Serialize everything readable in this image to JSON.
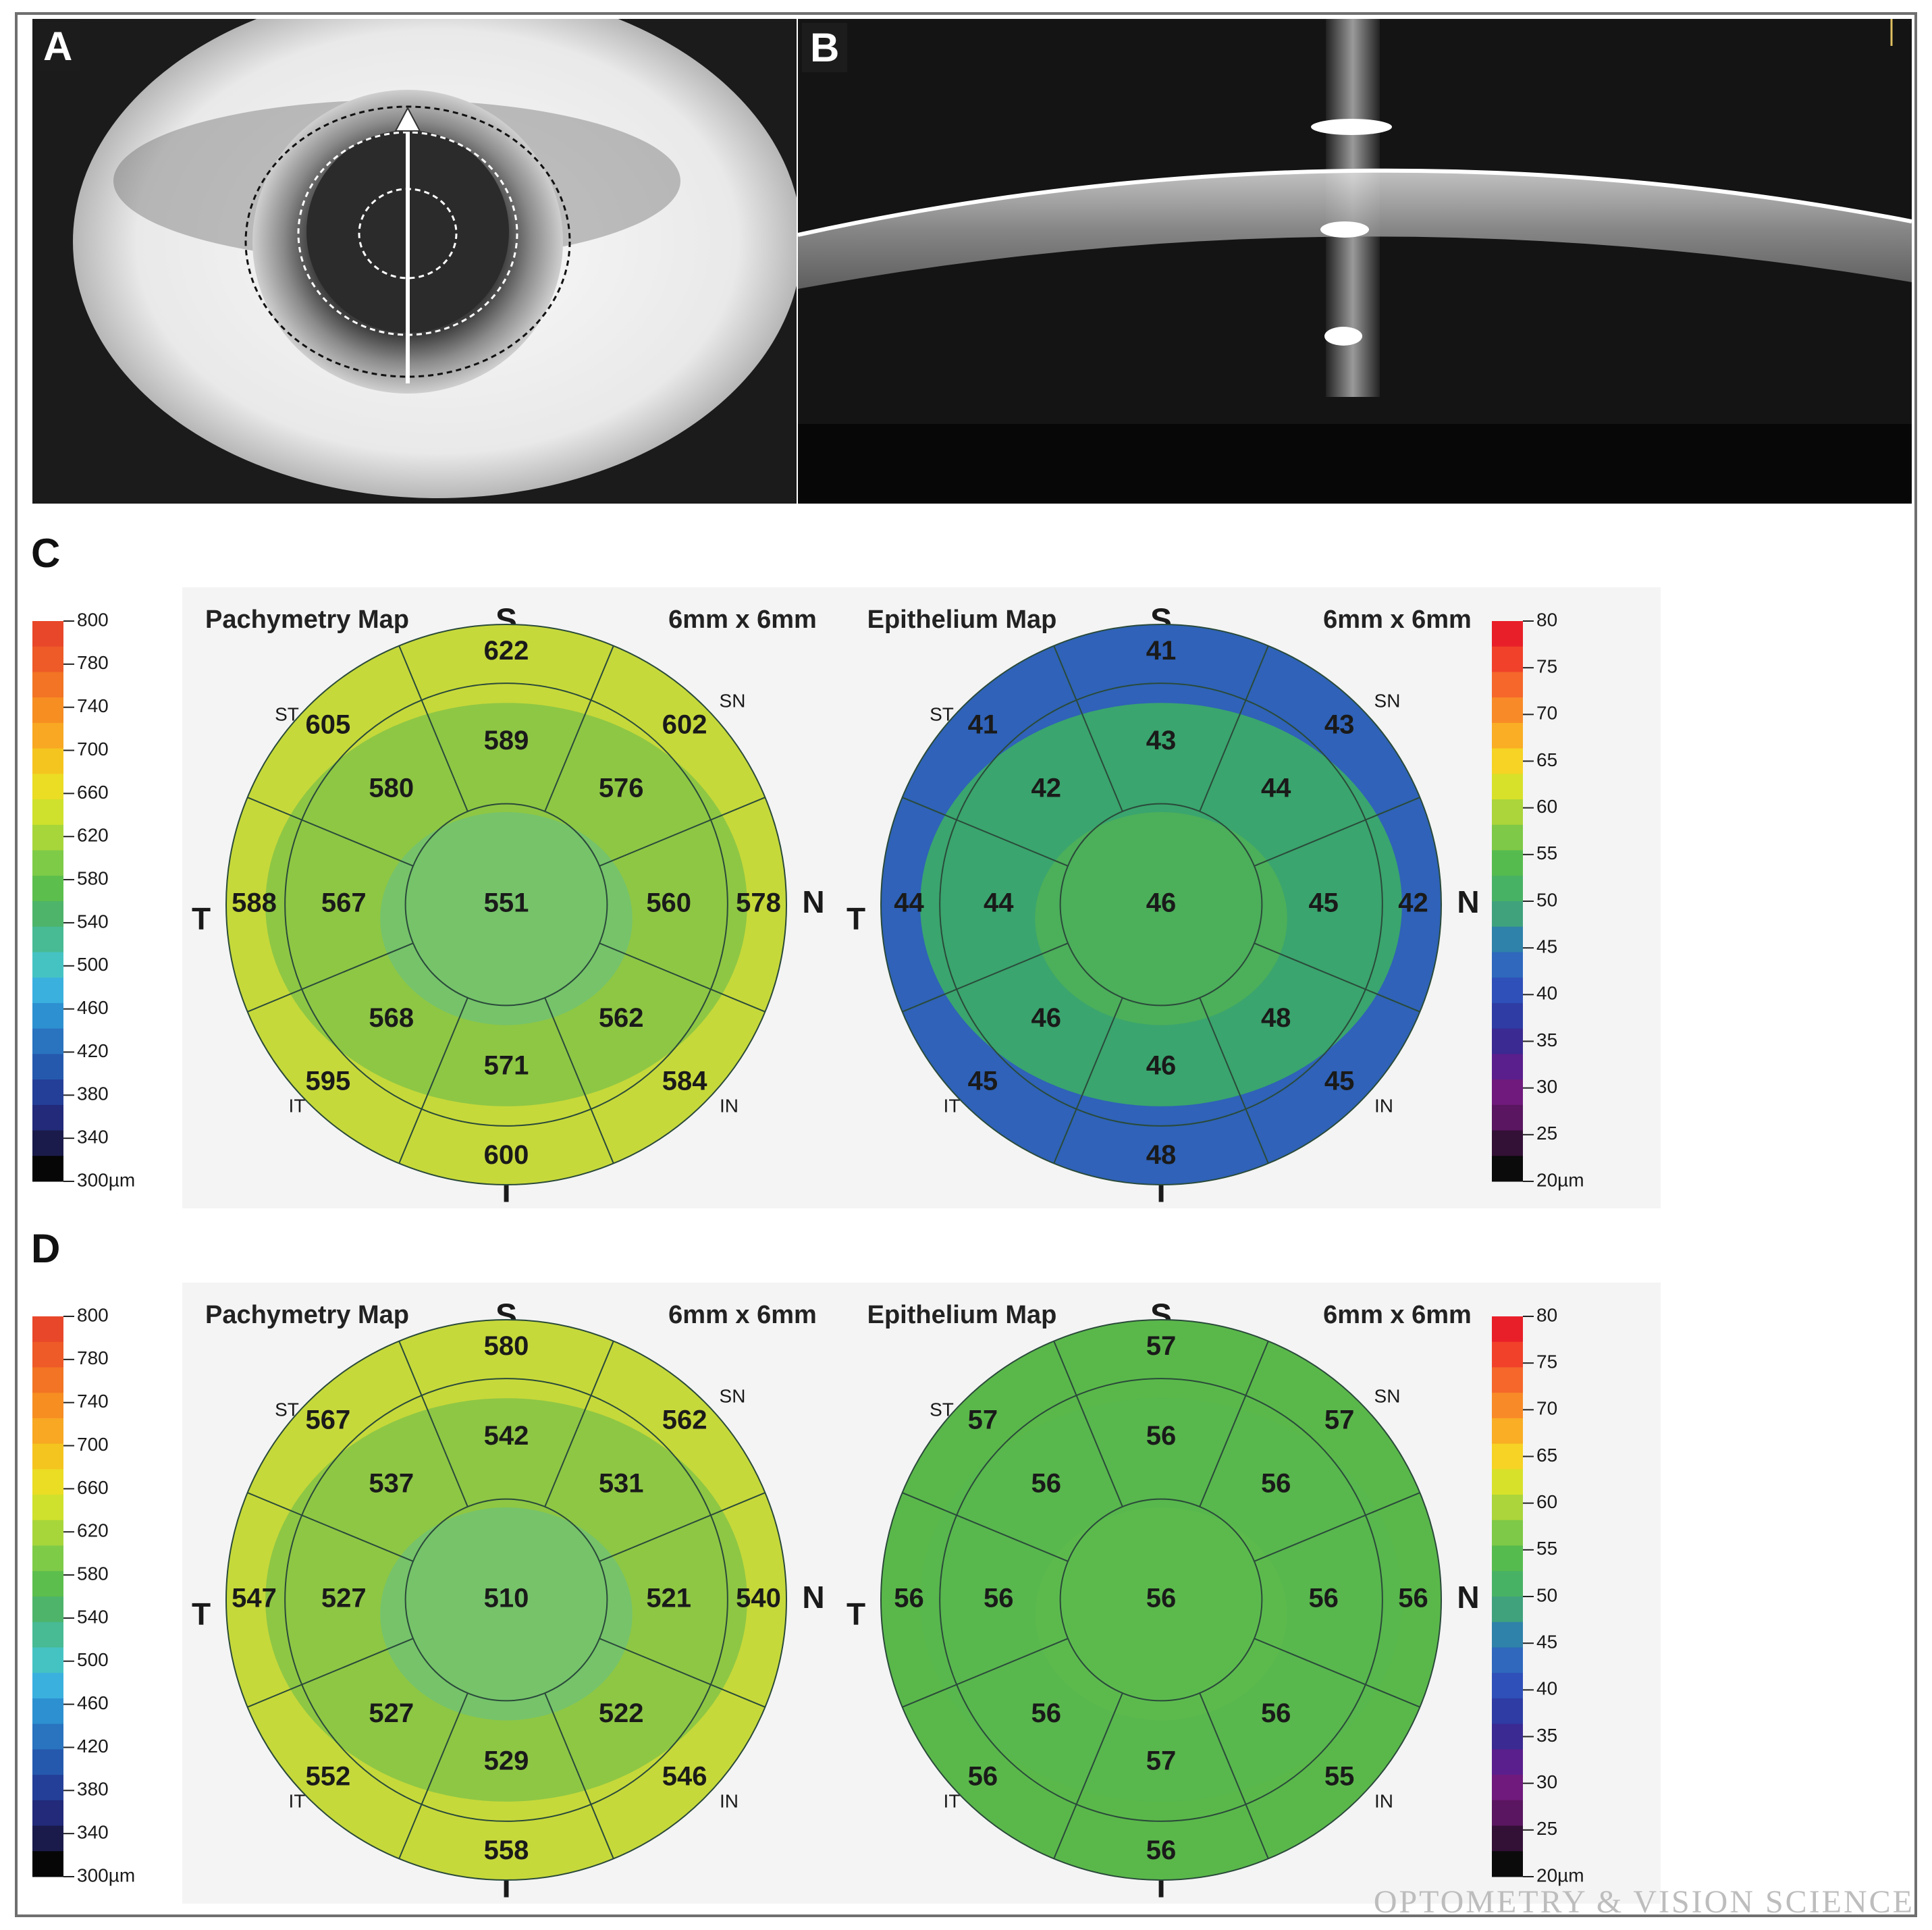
{
  "panels": {
    "a": {
      "label": "A"
    },
    "b": {
      "label": "B"
    },
    "c": {
      "label": "C"
    },
    "d": {
      "label": "D"
    }
  },
  "map_titles": {
    "pachymetry": "Pachymetry Map",
    "epithelium": "Epithelium Map",
    "size": "6mm x 6mm"
  },
  "orientation": {
    "S": "S",
    "I": "I",
    "T": "T",
    "N": "N",
    "ST": "ST",
    "SN": "SN",
    "IT": "IT",
    "IN": "IN"
  },
  "pachy_scale": {
    "ticks": [
      "800",
      "780",
      "740",
      "700",
      "660",
      "620",
      "580",
      "540",
      "500",
      "460",
      "420",
      "380",
      "340",
      "300µm"
    ],
    "colors": [
      "#e8472a",
      "#ee5a28",
      "#f27424",
      "#f78e22",
      "#f8a823",
      "#f5c51f",
      "#ebdc24",
      "#cfe12c",
      "#a7d63a",
      "#7ecb48",
      "#5cbe4c",
      "#4db46a",
      "#48ba94",
      "#45c3c3",
      "#3ab0df",
      "#2d90d0",
      "#2a73bf",
      "#2559ad",
      "#243f98",
      "#222a79",
      "#1a1b4a",
      "#060606"
    ]
  },
  "epi_scale": {
    "ticks": [
      "80",
      "75",
      "70",
      "65",
      "60",
      "55",
      "50",
      "45",
      "40",
      "35",
      "30",
      "25",
      "20µm"
    ],
    "colors": [
      "#e81f28",
      "#f1412a",
      "#f5672b",
      "#f88b28",
      "#f9ae25",
      "#f6d324",
      "#d8e12a",
      "#abd53a",
      "#7ec947",
      "#56bb4e",
      "#48b264",
      "#3fa27d",
      "#2f82a9",
      "#2f68bd",
      "#2f50b8",
      "#2e3ca3",
      "#3a2a92",
      "#5a1f8c",
      "#6f1a7c",
      "#5a1660",
      "#331036",
      "#0b0b0b"
    ]
  },
  "maps": {
    "c_pachy": {
      "center": "551",
      "ring2": [
        "589",
        "576",
        "560",
        "562",
        "571",
        "568",
        "567",
        "580"
      ],
      "ring3": [
        "622",
        "602",
        "578",
        "584",
        "600",
        "595",
        "588",
        "605"
      ]
    },
    "c_epi": {
      "center": "46",
      "ring2": [
        "43",
        "44",
        "45",
        "48",
        "46",
        "46",
        "44",
        "42"
      ],
      "ring3": [
        "41",
        "43",
        "42",
        "45",
        "48",
        "45",
        "44",
        "41"
      ]
    },
    "d_pachy": {
      "center": "510",
      "ring2": [
        "542",
        "531",
        "521",
        "522",
        "529",
        "527",
        "527",
        "537"
      ],
      "ring3": [
        "580",
        "562",
        "540",
        "546",
        "558",
        "552",
        "547",
        "567"
      ]
    },
    "d_epi": {
      "center": "56",
      "ring2": [
        "56",
        "56",
        "56",
        "56",
        "57",
        "56",
        "56",
        "56"
      ],
      "ring3": [
        "57",
        "57",
        "56",
        "55",
        "56",
        "56",
        "56",
        "57"
      ]
    }
  },
  "watermark": "OPTOMETRY & VISION SCIENCE"
}
